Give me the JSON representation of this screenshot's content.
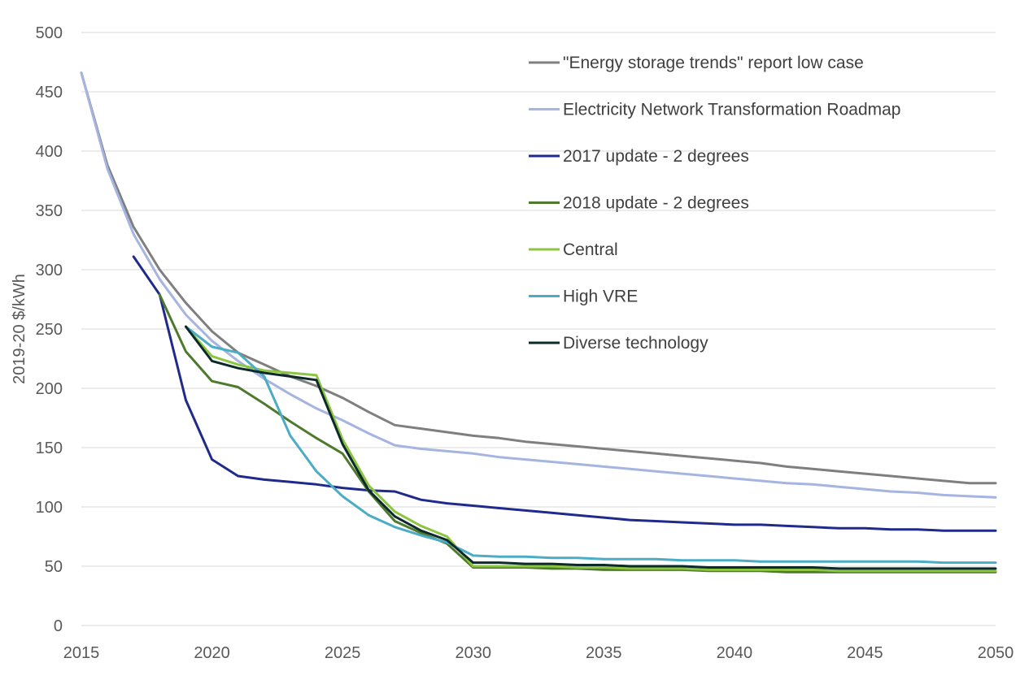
{
  "chart_data": {
    "type": "line",
    "title": "",
    "xlabel": "",
    "ylabel": "2019-20 $/kWh",
    "xlim": [
      2015,
      2050
    ],
    "ylim": [
      0,
      500
    ],
    "x_ticks": [
      2015,
      2020,
      2025,
      2030,
      2035,
      2040,
      2045,
      2050
    ],
    "y_ticks": [
      0,
      50,
      100,
      150,
      200,
      250,
      300,
      350,
      400,
      450,
      500
    ],
    "grid": "horizontal",
    "legend_position": "top-right",
    "series": [
      {
        "name": "\"Energy storage trends\" report low case",
        "color": "#7f7f7f",
        "x": [
          2015,
          2016,
          2017,
          2018,
          2019,
          2020,
          2021,
          2022,
          2023,
          2024,
          2025,
          2026,
          2027,
          2028,
          2029,
          2030,
          2031,
          2032,
          2033,
          2034,
          2035,
          2036,
          2037,
          2038,
          2039,
          2040,
          2041,
          2042,
          2043,
          2044,
          2045,
          2046,
          2047,
          2048,
          2049,
          2050
        ],
        "y": [
          466,
          388,
          336,
          300,
          272,
          248,
          230,
          220,
          210,
          202,
          192,
          180,
          169,
          166,
          163,
          160,
          158,
          155,
          153,
          151,
          149,
          147,
          145,
          143,
          141,
          139,
          137,
          134,
          132,
          130,
          128,
          126,
          124,
          122,
          120,
          120
        ]
      },
      {
        "name": "Electricity Network Transformation Roadmap",
        "color": "#a5b4e0",
        "x": [
          2015,
          2016,
          2017,
          2018,
          2019,
          2020,
          2021,
          2022,
          2023,
          2024,
          2025,
          2026,
          2027,
          2028,
          2029,
          2030,
          2031,
          2032,
          2033,
          2034,
          2035,
          2036,
          2037,
          2038,
          2039,
          2040,
          2041,
          2042,
          2043,
          2044,
          2045,
          2046,
          2047,
          2048,
          2049,
          2050
        ],
        "y": [
          466,
          385,
          330,
          292,
          262,
          240,
          223,
          208,
          195,
          183,
          173,
          162,
          152,
          149,
          147,
          145,
          142,
          140,
          138,
          136,
          134,
          132,
          130,
          128,
          126,
          124,
          122,
          120,
          119,
          117,
          115,
          113,
          112,
          110,
          109,
          108
        ]
      },
      {
        "name": "2017 update - 2 degrees",
        "color": "#1f2a8c",
        "x": [
          2017,
          2018,
          2019,
          2020,
          2021,
          2022,
          2023,
          2024,
          2025,
          2026,
          2027,
          2028,
          2029,
          2030,
          2031,
          2032,
          2033,
          2034,
          2035,
          2036,
          2037,
          2038,
          2039,
          2040,
          2041,
          2042,
          2043,
          2044,
          2045,
          2046,
          2047,
          2048,
          2049,
          2050
        ],
        "y": [
          311,
          279,
          190,
          140,
          126,
          123,
          121,
          119,
          116,
          114,
          113,
          106,
          103,
          101,
          99,
          97,
          95,
          93,
          91,
          89,
          88,
          87,
          86,
          85,
          85,
          84,
          83,
          82,
          82,
          81,
          81,
          80,
          80,
          80
        ]
      },
      {
        "name": "2018 update - 2 degrees",
        "color": "#4d7a2e",
        "x": [
          2018,
          2019,
          2020,
          2021,
          2022,
          2023,
          2024,
          2025,
          2026,
          2027,
          2028,
          2029,
          2030,
          2031,
          2032,
          2033,
          2034,
          2035,
          2036,
          2037,
          2038,
          2039,
          2040,
          2041,
          2042,
          2043,
          2044,
          2045,
          2046,
          2047,
          2048,
          2049,
          2050
        ],
        "y": [
          279,
          231,
          206,
          201,
          187,
          172,
          158,
          145,
          113,
          88,
          78,
          69,
          49,
          49,
          49,
          48,
          48,
          47,
          47,
          47,
          47,
          46,
          46,
          46,
          45,
          45,
          45,
          45,
          45,
          45,
          45,
          45,
          45
        ]
      },
      {
        "name": "Central",
        "color": "#8cc641",
        "x": [
          2019,
          2020,
          2021,
          2022,
          2023,
          2024,
          2025,
          2026,
          2027,
          2028,
          2029,
          2030,
          2031,
          2032,
          2033,
          2034,
          2035,
          2036,
          2037,
          2038,
          2039,
          2040,
          2041,
          2042,
          2043,
          2044,
          2045,
          2046,
          2047,
          2048,
          2049,
          2050
        ],
        "y": [
          252,
          227,
          220,
          215,
          213,
          211,
          157,
          118,
          96,
          84,
          75,
          50,
          50,
          50,
          50,
          49,
          49,
          48,
          48,
          48,
          47,
          47,
          47,
          47,
          47,
          46,
          46,
          46,
          46,
          46,
          46,
          46
        ]
      },
      {
        "name": "High VRE",
        "color": "#4bacc6",
        "x": [
          2019,
          2020,
          2021,
          2022,
          2023,
          2024,
          2025,
          2026,
          2027,
          2028,
          2029,
          2030,
          2031,
          2032,
          2033,
          2034,
          2035,
          2036,
          2037,
          2038,
          2039,
          2040,
          2041,
          2042,
          2043,
          2044,
          2045,
          2046,
          2047,
          2048,
          2049,
          2050
        ],
        "y": [
          252,
          235,
          230,
          210,
          160,
          130,
          109,
          93,
          83,
          76,
          70,
          59,
          58,
          58,
          57,
          57,
          56,
          56,
          56,
          55,
          55,
          55,
          54,
          54,
          54,
          54,
          54,
          54,
          54,
          53,
          53,
          53
        ]
      },
      {
        "name": "Diverse technology",
        "color": "#0d2a2a",
        "x": [
          2019,
          2020,
          2021,
          2022,
          2023,
          2024,
          2025,
          2026,
          2027,
          2028,
          2029,
          2030,
          2031,
          2032,
          2033,
          2034,
          2035,
          2036,
          2037,
          2038,
          2039,
          2040,
          2041,
          2042,
          2043,
          2044,
          2045,
          2046,
          2047,
          2048,
          2049,
          2050
        ],
        "y": [
          252,
          223,
          217,
          213,
          210,
          207,
          153,
          114,
          92,
          80,
          72,
          53,
          53,
          52,
          52,
          51,
          51,
          50,
          50,
          50,
          49,
          49,
          49,
          49,
          49,
          48,
          48,
          48,
          48,
          48,
          48,
          48
        ]
      }
    ]
  }
}
